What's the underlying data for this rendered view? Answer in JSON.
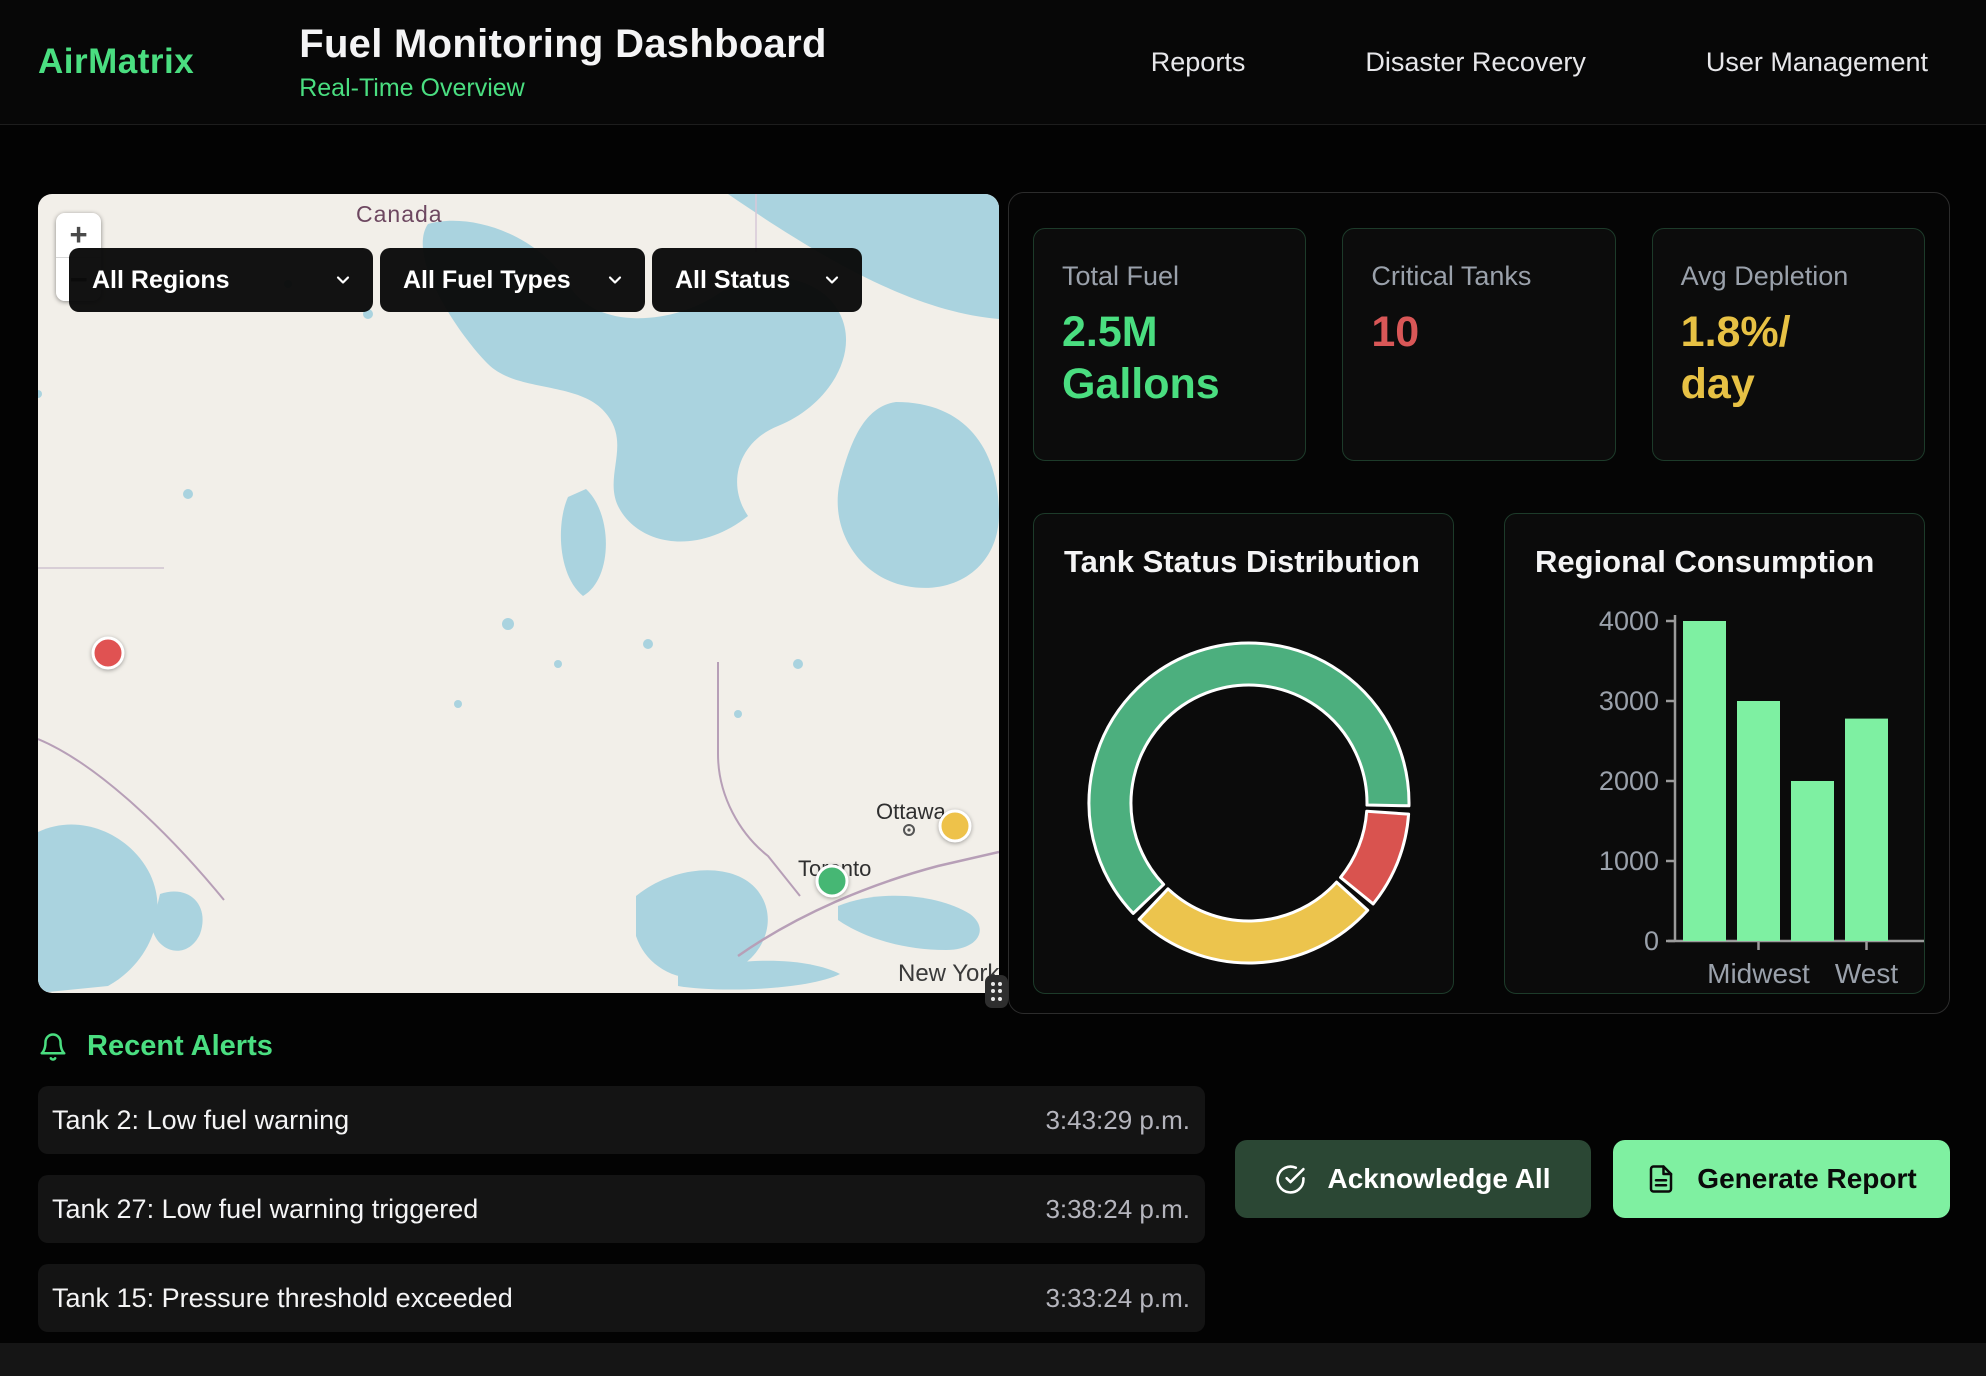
{
  "header": {
    "logo": "AirMatrix",
    "title": "Fuel Monitoring Dashboard",
    "subtitle": "Real-Time Overview",
    "nav": [
      {
        "label": "Reports"
      },
      {
        "label": "Disaster Recovery"
      },
      {
        "label": "User Management"
      }
    ],
    "accent_color": "#4ade80"
  },
  "map": {
    "filters": {
      "region": "All Regions",
      "fuel_type": "All Fuel Types",
      "status": "All Status"
    },
    "zoom_in": "+",
    "zoom_out": "−",
    "labels": {
      "country": "Canada",
      "city_1": "Ottawa",
      "city_2": "Toronto",
      "city_3": "New York"
    },
    "markers": [
      {
        "color": "#e05252"
      },
      {
        "color": "#eec24a"
      },
      {
        "color": "#46b774"
      }
    ]
  },
  "stats": [
    {
      "label": "Total Fuel",
      "value": "2.5M\nGallons",
      "color": "#4ade80"
    },
    {
      "label": "Critical Tanks",
      "value": "10",
      "color": "#d95757"
    },
    {
      "label": "Avg Depletion",
      "value": "1.8%/\nday",
      "color": "#e7c144"
    }
  ],
  "chart_data": [
    {
      "type": "pie",
      "donut": true,
      "title": "Tank Status Distribution",
      "legend": false,
      "start_angle_deg": 4,
      "segments": [
        {
          "label": "red",
          "value": 10,
          "color": "#d9534f"
        },
        {
          "label": "yellow",
          "value": 26,
          "color": "#ecc44d"
        },
        {
          "label": "green",
          "value": 64,
          "color": "#4caf7e"
        }
      ]
    },
    {
      "type": "bar",
      "title": "Regional Consumption",
      "categories": [
        "",
        "Midwest",
        "",
        "West"
      ],
      "values": [
        4000,
        3000,
        2000,
        2780
      ],
      "ylim": [
        0,
        4000
      ],
      "yticks": [
        0,
        1000,
        2000,
        3000,
        4000
      ],
      "bar_color": "#7ef0a2",
      "axis_color": "#9b9b9b",
      "tick_label_color": "#9aa1ab",
      "grid": false,
      "xlabel": "",
      "ylabel": ""
    }
  ],
  "alerts": {
    "heading": "Recent Alerts",
    "items": [
      {
        "message": "Tank 2: Low fuel warning",
        "time": "3:43:29 p.m."
      },
      {
        "message": "Tank 27: Low fuel warning triggered",
        "time": "3:38:24 p.m."
      },
      {
        "message": "Tank 15: Pressure threshold exceeded",
        "time": "3:33:24 p.m."
      }
    ]
  },
  "actions": {
    "acknowledge_all": "Acknowledge All",
    "generate_report": "Generate Report"
  }
}
